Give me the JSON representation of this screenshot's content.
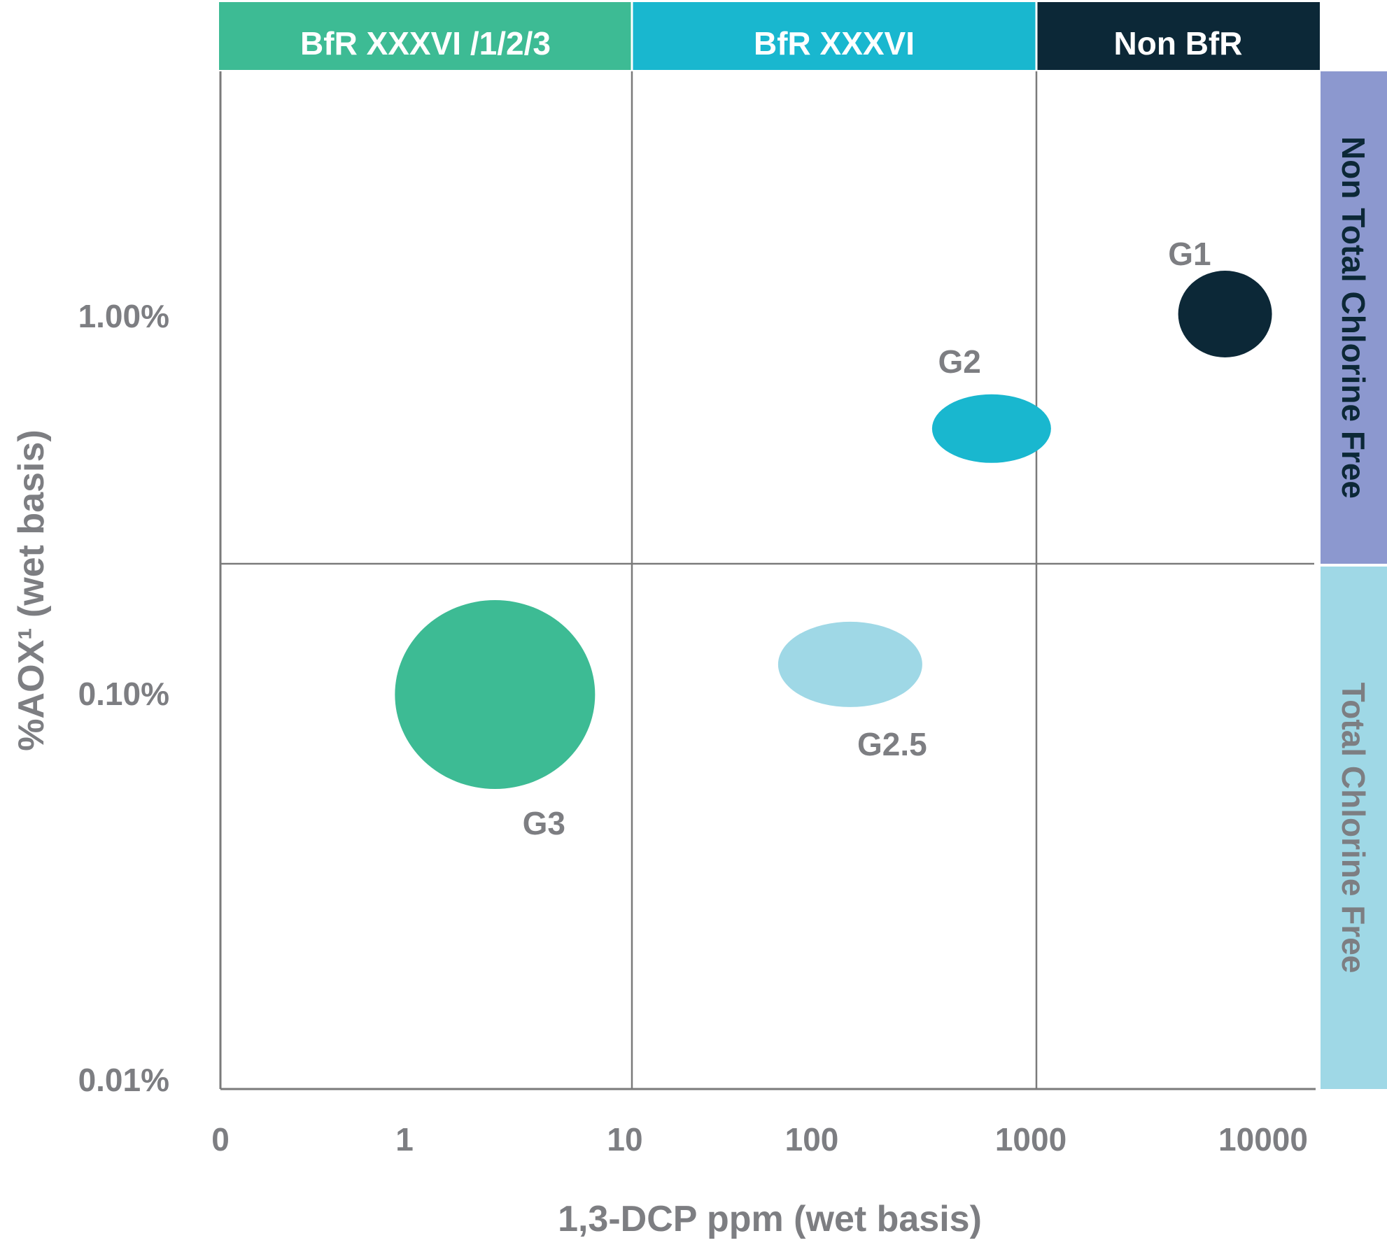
{
  "chart_data": {
    "type": "scatter",
    "title": "",
    "xlabel": "1,3-DCP ppm (wet basis)",
    "ylabel": "%AOX¹ (wet basis)",
    "x_ticks": [
      "0",
      "1",
      "10",
      "100",
      "1000",
      "10000"
    ],
    "y_ticks": [
      "0.01%",
      "0.10%",
      "1.00%"
    ],
    "x_scale": "log",
    "y_scale": "log",
    "grid": true,
    "top_categories": [
      {
        "label": "BfR XXXVI /1/2/3",
        "from": "0",
        "to": "10",
        "color": "#3dbb94"
      },
      {
        "label": "BfR XXXVI",
        "from": "10",
        "to": "1000",
        "color": "#19b7cf"
      },
      {
        "label": "Non BfR",
        "from": "1000",
        "to": "10000",
        "color": "#0c2837"
      }
    ],
    "side_categories": [
      {
        "label": "Non Total Chlorine Free",
        "color": "#8c98cf",
        "text_color": "#0c2837"
      },
      {
        "label": "Total Chlorine Free",
        "color": "#9fd8e6",
        "text_color": "#7d7e82"
      }
    ],
    "points": [
      {
        "label": "G1",
        "x": 7000,
        "y": 1.0,
        "color": "#0c2837"
      },
      {
        "label": "G2",
        "x": 600,
        "y": 0.5,
        "color": "#19b7cf"
      },
      {
        "label": "G2.5",
        "x": 120,
        "y": 0.12,
        "color": "#9fd8e6"
      },
      {
        "label": "G3",
        "x": 2.5,
        "y": 0.1,
        "color": "#3dbb94"
      }
    ]
  }
}
